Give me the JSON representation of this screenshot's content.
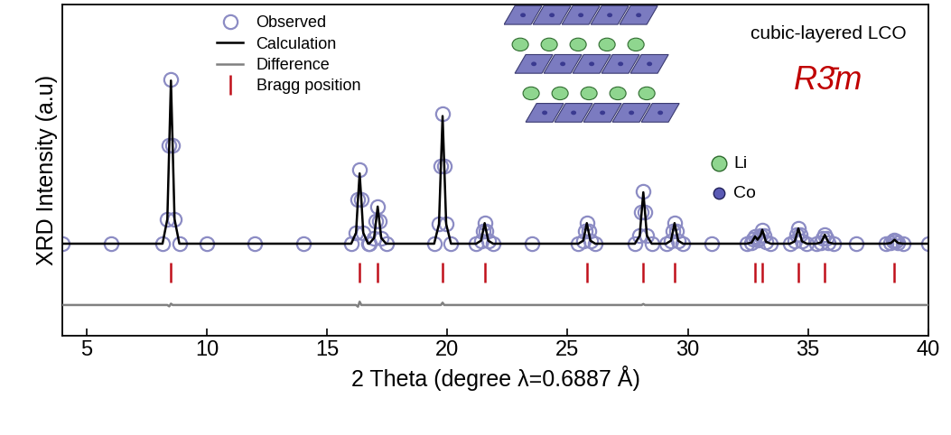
{
  "chart_data": {
    "type": "line",
    "x_label": "2 Theta (degree λ=0.6887 Å)",
    "y_label": "XRD Intensity (a.u)",
    "annotations": [
      "cubic-layered LCO",
      "R3̄m",
      "Li",
      "Co"
    ],
    "xlim": [
      4,
      40
    ],
    "xticks": [
      5,
      10,
      15,
      20,
      25,
      30,
      35,
      40
    ],
    "ylim": [
      0,
      100
    ],
    "yticks": [],
    "tick_labels": "x",
    "legend": "upper left",
    "x": [
      4.0,
      6.0,
      8.15,
      8.35,
      8.43,
      8.5,
      8.57,
      8.65,
      8.85,
      10.0,
      12.0,
      14.0,
      16.0,
      16.2,
      16.28,
      16.35,
      16.42,
      16.5,
      16.7,
      16.75,
      16.95,
      17.03,
      17.1,
      17.17,
      17.25,
      17.45,
      19.45,
      19.65,
      19.73,
      19.8,
      19.87,
      19.95,
      20.15,
      21.2,
      21.4,
      21.48,
      21.55,
      21.62,
      21.7,
      21.9,
      23.5,
      25.45,
      25.65,
      25.73,
      25.8,
      25.87,
      25.95,
      26.15,
      27.8,
      28.0,
      28.08,
      28.15,
      28.22,
      28.3,
      28.5,
      29.1,
      29.3,
      29.38,
      29.45,
      29.52,
      29.6,
      29.8,
      31.0,
      32.45,
      32.65,
      32.73,
      32.8,
      32.9,
      32.95,
      33.03,
      33.1,
      33.17,
      33.25,
      33.45,
      34.25,
      34.45,
      34.53,
      34.6,
      34.67,
      34.75,
      34.95,
      35.35,
      35.55,
      35.63,
      35.7,
      35.77,
      35.85,
      36.05,
      37.0,
      38.25,
      38.45,
      38.53,
      38.6,
      38.67,
      38.75,
      38.95,
      40.0
    ],
    "series": [
      {
        "name": "Observed",
        "type": "scatter",
        "marker": "circle",
        "color": "#8c8cc4",
        "values": [
          27.8,
          27.8,
          27.8,
          35.2,
          57.6,
          77.4,
          57.6,
          35.2,
          27.8,
          27.8,
          27.8,
          27.8,
          27.8,
          31.1,
          41.1,
          50.0,
          41.1,
          31.1,
          27.8,
          27.8,
          29.5,
          34.5,
          39.0,
          34.5,
          29.5,
          27.8,
          27.8,
          33.7,
          51.3,
          67.0,
          51.3,
          33.7,
          27.8,
          27.8,
          28.7,
          31.5,
          34.0,
          31.5,
          28.7,
          27.8,
          27.8,
          27.8,
          28.7,
          31.5,
          34.0,
          31.5,
          28.7,
          27.8,
          27.8,
          30.2,
          37.3,
          43.6,
          37.3,
          30.2,
          27.8,
          27.8,
          28.7,
          31.5,
          34.0,
          31.5,
          28.7,
          27.8,
          27.8,
          27.8,
          28.1,
          29.1,
          30.0,
          29.0,
          29.5,
          30.3,
          32.0,
          30.3,
          28.4,
          27.8,
          27.8,
          28.5,
          30.6,
          32.4,
          30.6,
          28.5,
          27.8,
          27.8,
          28.2,
          29.4,
          30.5,
          29.4,
          28.2,
          27.8,
          27.8,
          27.8,
          28.0,
          28.5,
          29.0,
          28.5,
          28.0,
          27.8,
          27.8
        ]
      },
      {
        "name": "Calculation",
        "type": "line",
        "line_style": "solid",
        "color": "#000000",
        "values": [
          27.8,
          27.8,
          27.8,
          35.2,
          57.6,
          77.0,
          57.6,
          35.2,
          27.8,
          27.8,
          27.8,
          27.8,
          27.8,
          31.1,
          41.1,
          49.0,
          41.1,
          31.1,
          27.8,
          27.8,
          29.5,
          34.5,
          39.0,
          34.5,
          29.5,
          27.8,
          27.8,
          33.7,
          51.3,
          66.3,
          51.3,
          33.7,
          27.8,
          27.8,
          28.7,
          31.5,
          34.0,
          31.5,
          28.7,
          27.8,
          27.8,
          27.8,
          28.7,
          31.5,
          34.0,
          31.5,
          28.7,
          27.8,
          27.8,
          30.2,
          37.3,
          43.3,
          37.3,
          30.2,
          27.8,
          27.8,
          28.7,
          31.5,
          34.0,
          31.5,
          28.7,
          27.8,
          27.8,
          27.8,
          28.1,
          29.1,
          30.0,
          29.0,
          29.5,
          30.3,
          32.0,
          30.3,
          28.4,
          27.8,
          27.8,
          28.5,
          30.6,
          32.4,
          30.6,
          28.5,
          27.8,
          27.8,
          28.2,
          29.4,
          30.5,
          29.4,
          28.2,
          27.8,
          27.8,
          27.8,
          28.0,
          28.5,
          29.0,
          28.5,
          28.0,
          27.8,
          27.8
        ]
      },
      {
        "name": "Difference",
        "type": "line",
        "line_style": "solid",
        "color": "#808080",
        "values": [
          9.3,
          9.3,
          9.3,
          9.3,
          8.9,
          9.7,
          9.3,
          9.3,
          9.3,
          9.3,
          9.3,
          9.3,
          9.3,
          9.3,
          8.8,
          10.3,
          9.3,
          9.3,
          9.3,
          9.3,
          9.3,
          9.3,
          9.3,
          9.3,
          9.3,
          9.3,
          9.3,
          9.3,
          9.3,
          10.0,
          9.3,
          9.3,
          9.3,
          9.3,
          9.3,
          9.3,
          9.3,
          9.3,
          9.3,
          9.3,
          9.3,
          9.3,
          9.3,
          9.3,
          9.3,
          9.3,
          9.3,
          9.3,
          9.3,
          9.3,
          9.3,
          9.6,
          9.3,
          9.3,
          9.3,
          9.3,
          9.3,
          9.3,
          9.3,
          9.3,
          9.3,
          9.3,
          9.3,
          9.3,
          9.3,
          9.3,
          9.3,
          9.3,
          9.3,
          9.3,
          9.3,
          9.3,
          9.3,
          9.3,
          9.3,
          9.3,
          9.3,
          9.3,
          9.3,
          9.3,
          9.3,
          9.3,
          9.3,
          9.3,
          9.3,
          9.3,
          9.3,
          9.3,
          9.3,
          9.3,
          9.3,
          9.3,
          9.3,
          9.3,
          9.3,
          9.3,
          9.3
        ]
      },
      {
        "name": "Bragg position",
        "type": "scatter",
        "marker": "vline",
        "color": "#c0101a",
        "x": [
          8.5,
          16.35,
          17.1,
          19.8,
          21.55,
          25.8,
          28.15,
          29.45,
          32.8,
          33.1,
          34.6,
          35.7,
          38.6
        ],
        "values": [
          19,
          19,
          19,
          19,
          19,
          19,
          19,
          19,
          19,
          19,
          19,
          19,
          19
        ]
      }
    ]
  }
}
